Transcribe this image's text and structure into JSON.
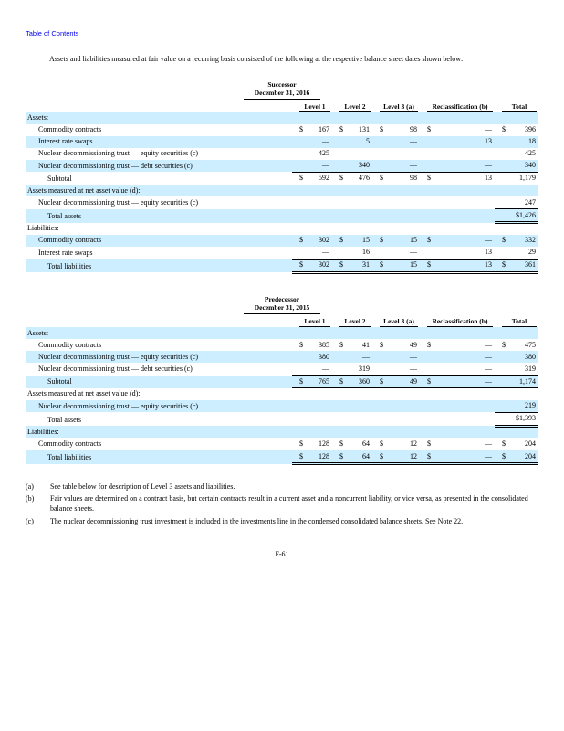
{
  "page": {
    "toc_link": "Table of Contents",
    "intro": "Assets and liabilities measured at fair value on a recurring basis consisted of the following at the respective balance sheet dates shown below:",
    "page_number": "F-61"
  },
  "colors": {
    "row_shade": "#cceeff",
    "link": "#0000ee"
  },
  "columns": [
    "Level 1",
    "Level 2",
    "Level 3 (a)",
    "Reclassification (b)",
    "Total"
  ],
  "tables": [
    {
      "period_label": "Successor",
      "date_label": "December 31, 2016",
      "rows": [
        {
          "label": "Assets:",
          "indent": 0,
          "shaded": true,
          "cells": [
            null,
            null,
            null,
            null,
            null
          ]
        },
        {
          "label": "Commodity contracts",
          "indent": 1,
          "shaded": false,
          "cells": [
            {
              "d": "$",
              "v": "167"
            },
            {
              "d": "$",
              "v": "131"
            },
            {
              "d": "$",
              "v": "98"
            },
            {
              "d": "$",
              "v": "—"
            },
            {
              "d": "$",
              "v": "396"
            }
          ]
        },
        {
          "label": "Interest rate swaps",
          "indent": 1,
          "shaded": true,
          "cells": [
            {
              "d": "",
              "v": "—"
            },
            {
              "d": "",
              "v": "5"
            },
            {
              "d": "",
              "v": "—"
            },
            {
              "d": "",
              "v": "13"
            },
            {
              "d": "",
              "v": "18"
            }
          ]
        },
        {
          "label": "Nuclear decommissioning trust — equity securities (c)",
          "indent": 1,
          "shaded": false,
          "cells": [
            {
              "d": "",
              "v": "425"
            },
            {
              "d": "",
              "v": "—"
            },
            {
              "d": "",
              "v": "—"
            },
            {
              "d": "",
              "v": "—"
            },
            {
              "d": "",
              "v": "425"
            }
          ]
        },
        {
          "label": "Nuclear decommissioning trust — debt securities (c)",
          "indent": 1,
          "shaded": true,
          "cells": [
            {
              "d": "",
              "v": "—"
            },
            {
              "d": "",
              "v": "340"
            },
            {
              "d": "",
              "v": "—"
            },
            {
              "d": "",
              "v": "—"
            },
            {
              "d": "",
              "v": "340"
            }
          ]
        },
        {
          "label": "Subtotal",
          "indent": 2,
          "shaded": false,
          "rule_top": true,
          "rule_bottom": "single",
          "cells": [
            {
              "d": "$",
              "v": "592"
            },
            {
              "d": "$",
              "v": "476"
            },
            {
              "d": "$",
              "v": "98"
            },
            {
              "d": "$",
              "v": "13"
            },
            {
              "d": "",
              "v": "1,179"
            }
          ]
        },
        {
          "label": "Assets measured at net asset value (d):",
          "indent": 0,
          "shaded": true,
          "cells": [
            null,
            null,
            null,
            null,
            null
          ]
        },
        {
          "label": "Nuclear decommissioning trust — equity securities (c)",
          "indent": 1,
          "shaded": false,
          "cells": [
            null,
            null,
            null,
            null,
            {
              "d": "",
              "v": "247"
            }
          ]
        },
        {
          "label": "Total assets",
          "indent": 2,
          "shaded": true,
          "rule_top": true,
          "rule_bottom": "double",
          "cells": [
            null,
            null,
            null,
            null,
            {
              "d": "",
              "v": "$1,426"
            }
          ]
        },
        {
          "label": "Liabilities:",
          "indent": 0,
          "shaded": false,
          "cells": [
            null,
            null,
            null,
            null,
            null
          ]
        },
        {
          "label": "Commodity contracts",
          "indent": 1,
          "shaded": true,
          "cells": [
            {
              "d": "$",
              "v": "302"
            },
            {
              "d": "$",
              "v": "15"
            },
            {
              "d": "$",
              "v": "15"
            },
            {
              "d": "$",
              "v": "—"
            },
            {
              "d": "$",
              "v": "332"
            }
          ]
        },
        {
          "label": "Interest rate swaps",
          "indent": 1,
          "shaded": false,
          "cells": [
            {
              "d": "",
              "v": "—"
            },
            {
              "d": "",
              "v": "16"
            },
            {
              "d": "",
              "v": "—"
            },
            {
              "d": "",
              "v": "13"
            },
            {
              "d": "",
              "v": "29"
            }
          ]
        },
        {
          "label": "Total liabilities",
          "indent": 2,
          "shaded": true,
          "rule_top": true,
          "rule_bottom": "double",
          "cells": [
            {
              "d": "$",
              "v": "302"
            },
            {
              "d": "$",
              "v": "31"
            },
            {
              "d": "$",
              "v": "15"
            },
            {
              "d": "$",
              "v": "13"
            },
            {
              "d": "$",
              "v": "361"
            }
          ]
        }
      ]
    },
    {
      "period_label": "Predecessor",
      "date_label": "December 31, 2015",
      "rows": [
        {
          "label": "Assets:",
          "indent": 0,
          "shaded": true,
          "cells": [
            null,
            null,
            null,
            null,
            null
          ]
        },
        {
          "label": "Commodity contracts",
          "indent": 1,
          "shaded": false,
          "cells": [
            {
              "d": "$",
              "v": "385"
            },
            {
              "d": "$",
              "v": "41"
            },
            {
              "d": "$",
              "v": "49"
            },
            {
              "d": "$",
              "v": "—"
            },
            {
              "d": "$",
              "v": "475"
            }
          ]
        },
        {
          "label": "Nuclear decommissioning trust — equity securities (c)",
          "indent": 1,
          "shaded": true,
          "cells": [
            {
              "d": "",
              "v": "380"
            },
            {
              "d": "",
              "v": "—"
            },
            {
              "d": "",
              "v": "—"
            },
            {
              "d": "",
              "v": "—"
            },
            {
              "d": "",
              "v": "380"
            }
          ]
        },
        {
          "label": "Nuclear decommissioning trust — debt securities (c)",
          "indent": 1,
          "shaded": false,
          "cells": [
            {
              "d": "",
              "v": "—"
            },
            {
              "d": "",
              "v": "319"
            },
            {
              "d": "",
              "v": "—"
            },
            {
              "d": "",
              "v": "—"
            },
            {
              "d": "",
              "v": "319"
            }
          ]
        },
        {
          "label": "Subtotal",
          "indent": 2,
          "shaded": true,
          "rule_top": true,
          "rule_bottom": "single",
          "cells": [
            {
              "d": "$",
              "v": "765"
            },
            {
              "d": "$",
              "v": "360"
            },
            {
              "d": "$",
              "v": "49"
            },
            {
              "d": "$",
              "v": "—"
            },
            {
              "d": "",
              "v": "1,174"
            }
          ]
        },
        {
          "label": "Assets measured at net asset value (d):",
          "indent": 0,
          "shaded": false,
          "cells": [
            null,
            null,
            null,
            null,
            null
          ]
        },
        {
          "label": "Nuclear decommissioning trust — equity securities (c)",
          "indent": 1,
          "shaded": true,
          "cells": [
            null,
            null,
            null,
            null,
            {
              "d": "",
              "v": "219"
            }
          ]
        },
        {
          "label": "Total assets",
          "indent": 2,
          "shaded": false,
          "rule_top": true,
          "rule_bottom": "double",
          "cells": [
            null,
            null,
            null,
            null,
            {
              "d": "",
              "v": "$1,393"
            }
          ]
        },
        {
          "label": "Liabilities:",
          "indent": 0,
          "shaded": true,
          "cells": [
            null,
            null,
            null,
            null,
            null
          ]
        },
        {
          "label": "Commodity contracts",
          "indent": 1,
          "shaded": false,
          "cells": [
            {
              "d": "$",
              "v": "128"
            },
            {
              "d": "$",
              "v": "64"
            },
            {
              "d": "$",
              "v": "12"
            },
            {
              "d": "$",
              "v": "—"
            },
            {
              "d": "$",
              "v": "204"
            }
          ]
        },
        {
          "label": "Total liabilities",
          "indent": 2,
          "shaded": true,
          "rule_top": true,
          "rule_bottom": "double",
          "cells": [
            {
              "d": "$",
              "v": "128"
            },
            {
              "d": "$",
              "v": "64"
            },
            {
              "d": "$",
              "v": "12"
            },
            {
              "d": "$",
              "v": "—"
            },
            {
              "d": "$",
              "v": "204"
            }
          ]
        }
      ]
    }
  ],
  "footnotes": [
    {
      "marker": "(a)",
      "text": "See table below for description of Level 3 assets and liabilities."
    },
    {
      "marker": "(b)",
      "text": "Fair values are determined on a contract basis, but certain contracts result in a current asset and a noncurrent liability, or vice versa, as presented in the consolidated balance sheets."
    },
    {
      "marker": "(c)",
      "text": "The nuclear decommissioning trust investment is included in the investments line in the condensed consolidated balance sheets. See Note 22."
    }
  ]
}
